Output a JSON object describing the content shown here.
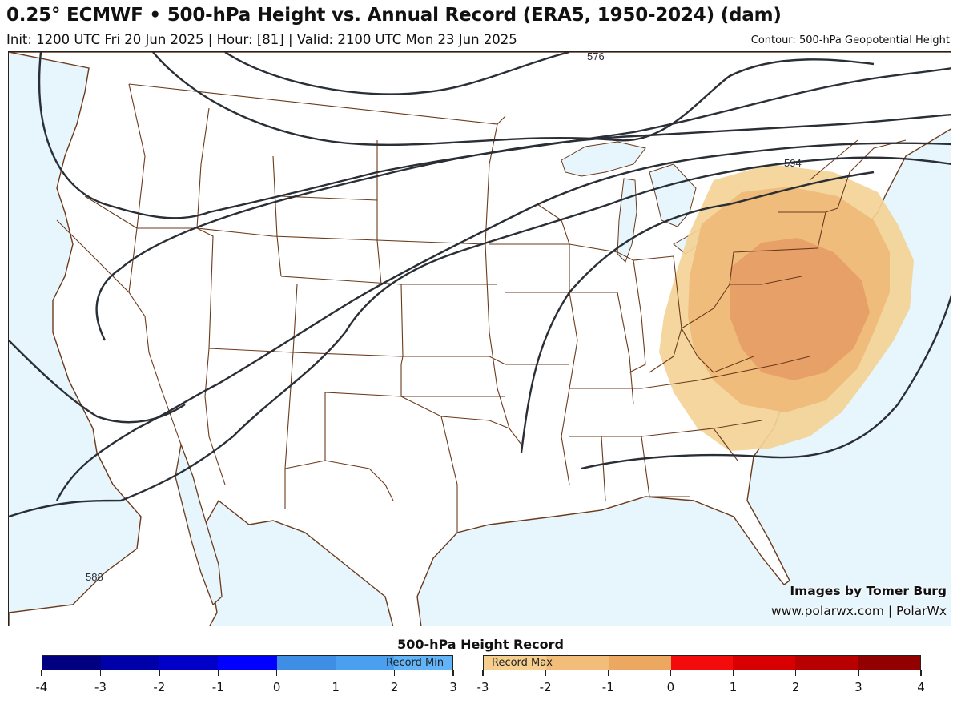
{
  "header": {
    "title": "0.25° ECMWF • 500-hPa Height vs. Annual Record (ERA5, 1950-2024) (dam)",
    "subtitle": "Init: 1200 UTC Fri 20 Jun 2025 | Hour: [81] | Valid: 2100 UTC Mon 23 Jun 2025",
    "contour_note": "Contour: 500-hPa Geopotential Height"
  },
  "map": {
    "contour_labels": [
      "576",
      "594",
      "588"
    ],
    "colors": {
      "ocean": "#e6f6fc",
      "land": "#ffffff",
      "borders": "#6b3a1c",
      "contours": "#2a2e35",
      "anomaly_light": "#f3d296",
      "anomaly_mid": "#eeb978",
      "anomaly_dark": "#e59d66"
    }
  },
  "credits": {
    "line1": "Images by Tomer Burg",
    "line2": "www.polarwx.com | PolarWx"
  },
  "colorbar": {
    "title": "500-hPa Height Record",
    "min_label": "Record Min",
    "max_label": "Record Max",
    "min_ticks": [
      "-4",
      "-3",
      "-2",
      "-1",
      "0",
      "1",
      "2",
      "3"
    ],
    "max_ticks": [
      "-3",
      "-2",
      "-1",
      "0",
      "1",
      "2",
      "3",
      "4"
    ],
    "min_colors": [
      "#000080",
      "#0000a8",
      "#0000c8",
      "#0000ff",
      "#3e8ee6",
      "#4aa0ef",
      "#62b4f8"
    ],
    "max_colors": [
      "#f6cf8f",
      "#f1bd78",
      "#eca760",
      "#f40c0c",
      "#d80000",
      "#b80000",
      "#920000"
    ]
  }
}
